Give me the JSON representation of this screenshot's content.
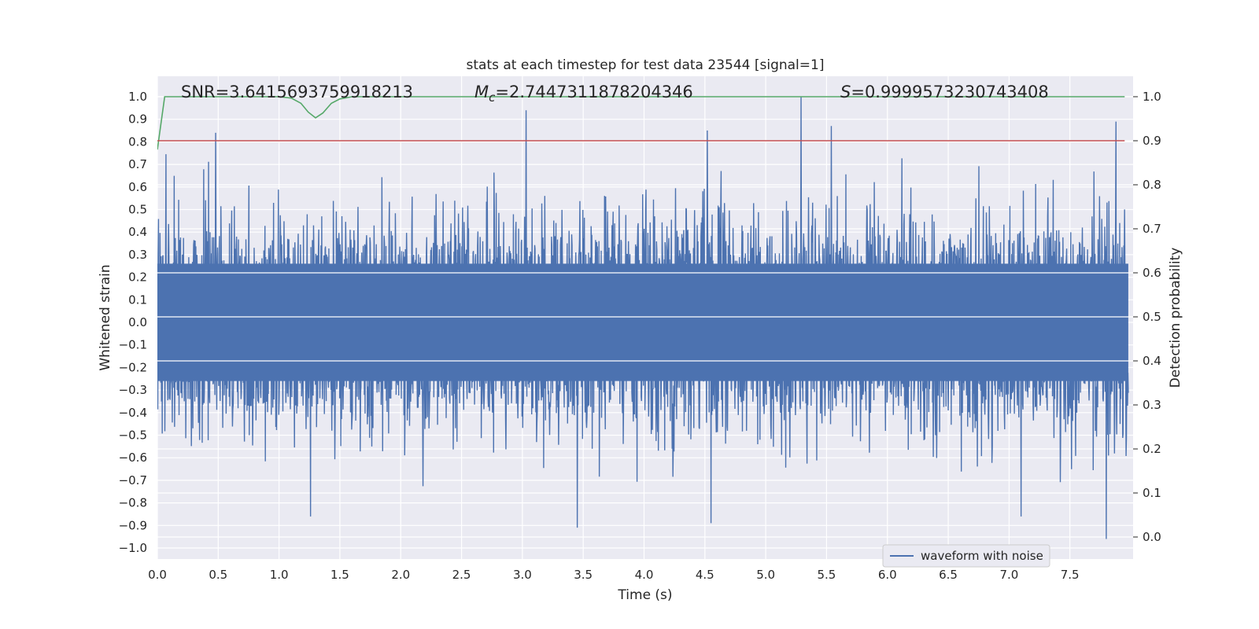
{
  "chart_data": {
    "type": "line",
    "title": "stats at each timestep for test data 23544 [signal=1]",
    "xlabel": "Time (s)",
    "ylabel_left": "Whitened strain",
    "ylabel_right": "Detection probability",
    "xlim": [
      0.0,
      8.0
    ],
    "ylim_left": [
      -1.1,
      1.1
    ],
    "ylim_right": [
      -0.05,
      1.05
    ],
    "grid": true,
    "x_ticks": [
      "0.0",
      "0.5",
      "1.0",
      "1.5",
      "2.0",
      "2.5",
      "3.0",
      "3.5",
      "4.0",
      "4.5",
      "5.0",
      "5.5",
      "6.0",
      "6.5",
      "7.0",
      "7.5"
    ],
    "y_ticks_left": [
      "1.0",
      "0.9",
      "0.8",
      "0.7",
      "0.6",
      "0.5",
      "0.4",
      "0.3",
      "0.2",
      "0.1",
      "0.0",
      "−0.1",
      "−0.2",
      "−0.3",
      "−0.4",
      "−0.5",
      "−0.6",
      "−0.7",
      "−0.8",
      "−0.9",
      "−1.0"
    ],
    "y_ticks_right": [
      "1.0",
      "0.9",
      "0.8",
      "0.7",
      "0.6",
      "0.5",
      "0.4",
      "0.3",
      "0.2",
      "0.1",
      "0.0"
    ],
    "annotations": {
      "snr": "SNR=3.6415693759918213",
      "mc_symbol": "M",
      "mc_sub": "c",
      "mc_value": "=2.7447311878204346",
      "s_symbol": "S",
      "s_value": "=0.9999573230743408"
    },
    "legend": {
      "label": "waveform with noise",
      "location": "lower right"
    },
    "series": [
      {
        "name": "waveform with noise",
        "axis": "left",
        "color": "#4c72b0",
        "description": "dense noisy whitened strain, bulk within about ±0.4",
        "peaks": [
          {
            "t": 0.48,
            "v": 0.84
          },
          {
            "t": 3.03,
            "v": 0.94
          },
          {
            "t": 4.52,
            "v": 0.85
          },
          {
            "t": 5.29,
            "v": 1.0
          },
          {
            "t": 5.54,
            "v": 0.87
          },
          {
            "t": 7.88,
            "v": 0.89
          },
          {
            "t": 1.26,
            "v": -0.86
          },
          {
            "t": 3.45,
            "v": -0.91
          },
          {
            "t": 4.55,
            "v": -0.89
          },
          {
            "t": 7.8,
            "v": -0.96
          },
          {
            "t": 7.1,
            "v": -0.86
          }
        ]
      },
      {
        "name": "detection probability",
        "axis": "right",
        "color": "#55a868",
        "x": [
          0.0,
          0.06,
          0.1,
          0.3,
          0.8,
          1.0,
          1.1,
          1.18,
          1.24,
          1.3,
          1.36,
          1.43,
          1.5,
          1.6,
          1.75,
          2.0,
          7.95
        ],
        "y": [
          0.88,
          1.0,
          1.0,
          1.0,
          1.0,
          1.0,
          0.997,
          0.985,
          0.965,
          0.952,
          0.963,
          0.985,
          0.995,
          1.0,
          1.0,
          1.0,
          1.0
        ]
      },
      {
        "name": "threshold",
        "axis": "right",
        "color": "#c44e52",
        "x": [
          0.0,
          7.95
        ],
        "y": [
          0.9,
          0.9
        ]
      }
    ]
  }
}
